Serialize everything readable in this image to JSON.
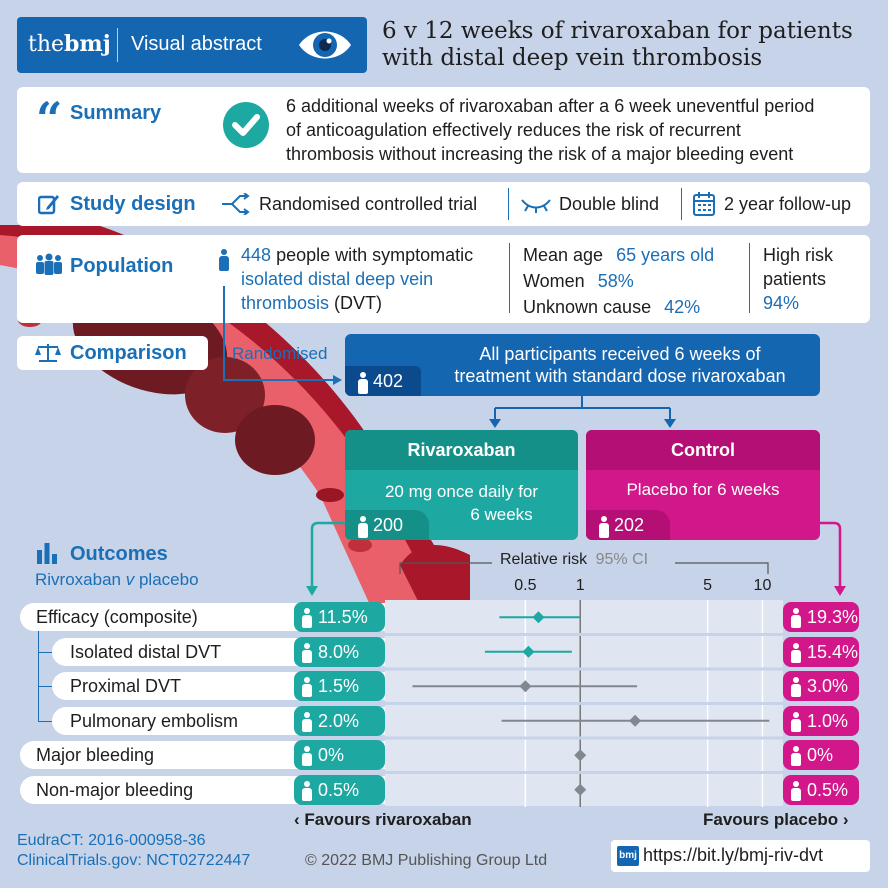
{
  "header": {
    "logo": "thebmj",
    "logo_the": "the",
    "logo_bmj": "bmj",
    "tag": "Visual abstract",
    "title_line1": "6 v 12 weeks of rivaroxaban for patients",
    "title_line2": "with distal deep vein thrombosis"
  },
  "summary": {
    "label": "Summary",
    "line1": "6 additional weeks of rivaroxaban after a 6 week uneventful period",
    "line2": "of anticoagulation effectively reduces the risk of recurrent",
    "line3": "thrombosis without increasing the risk of a major bleeding event"
  },
  "design": {
    "label": "Study design",
    "item1": "Randomised controlled trial",
    "item2": "Double blind",
    "item3": "2 year follow-up"
  },
  "population": {
    "label": "Population",
    "count": "448",
    "text1": "people with symptomatic",
    "text2": "isolated distal deep vein",
    "text3a": "thrombosis",
    "text3b": "(DVT)",
    "mean_age_label": "Mean age",
    "mean_age_value": "65 years old",
    "women_label": "Women",
    "women_value": "58%",
    "unknown_label": "Unknown cause",
    "unknown_value": "42%",
    "highrisk_line1": "High risk",
    "highrisk_line2": "patients",
    "highrisk_value": "94%"
  },
  "comparison": {
    "label": "Comparison",
    "randomised": "Randomised",
    "all_count": "402",
    "all_line1": "All participants received 6 weeks of",
    "all_line2": "treatment with standard dose rivaroxaban",
    "riv_title": "Rivaroxaban",
    "riv_line1": "20 mg once daily for",
    "riv_line2": "6 weeks",
    "riv_count": "200",
    "ctl_title": "Control",
    "ctl_line1": "Placebo for 6 weeks",
    "ctl_count": "202"
  },
  "outcomes": {
    "label": "Outcomes",
    "subtitle_a": "Rivroxaban",
    "subtitle_v": "v",
    "subtitle_b": "placebo",
    "rr_label": "Relative risk",
    "ci_label": "95% CI",
    "favours_left": "Favours rivaroxaban",
    "favours_right": "Favours placebo"
  },
  "chart_data": {
    "type": "forest",
    "x_scale": "log",
    "x_ticks": [
      0.5,
      1,
      5,
      10
    ],
    "x_tick_labels": [
      "0.5",
      "1",
      "5",
      "10"
    ],
    "rows": [
      {
        "name": "Efficacy (composite)",
        "riv": "11.5%",
        "ctl": "19.3%",
        "rr": 0.59,
        "lo": 0.36,
        "hi": 0.99,
        "color": "#1ea8a2",
        "indent": false
      },
      {
        "name": "Isolated distal DVT",
        "riv": "8.0%",
        "ctl": "15.4%",
        "rr": 0.52,
        "lo": 0.3,
        "hi": 0.9,
        "color": "#1ea8a2",
        "indent": true
      },
      {
        "name": "Proximal DVT",
        "riv": "1.5%",
        "ctl": "3.0%",
        "rr": 0.5,
        "lo": 0.12,
        "hi": 2.05,
        "color": "#808890",
        "indent": true
      },
      {
        "name": "Pulmonary embolism",
        "riv": "2.0%",
        "ctl": "1.0%",
        "rr": 2.0,
        "lo": 0.37,
        "hi": 10.9,
        "color": "#808890",
        "indent": true
      },
      {
        "name": "Major bleeding",
        "riv": "0%",
        "ctl": "0%",
        "rr": 1,
        "lo": null,
        "hi": null,
        "color": "#808890",
        "indent": false
      },
      {
        "name": "Non-major bleeding",
        "riv": "0.5%",
        "ctl": "0.5%",
        "rr": 1,
        "lo": null,
        "hi": null,
        "color": "#808890",
        "indent": false
      }
    ]
  },
  "footer": {
    "eudract": "EudraCT: 2016-000958-36",
    "clinical": "ClinicalTrials.gov: NCT02722447",
    "copyright": "© 2022 BMJ Publishing Group Ltd",
    "link_logo": "bmj",
    "link": "https://bit.ly/bmj-riv-dvt"
  },
  "colors": {
    "accent_blue": "#1a6fb7",
    "navy": "#1566b0",
    "teal": "#1ea8a2",
    "magenta": "#d1178a",
    "background": "#c7d3e8"
  }
}
